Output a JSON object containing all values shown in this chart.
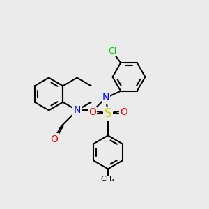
{
  "bg_color": "#ebebeb",
  "bond_color": "#000000",
  "bond_width": 1.5,
  "atom_colors": {
    "N": "#0000ff",
    "O": "#ff0000",
    "S": "#cccc00",
    "Cl": "#00cc00",
    "C": "#000000"
  },
  "font_size": 9,
  "fig_width": 3.0,
  "fig_height": 3.0,
  "dpi": 100
}
